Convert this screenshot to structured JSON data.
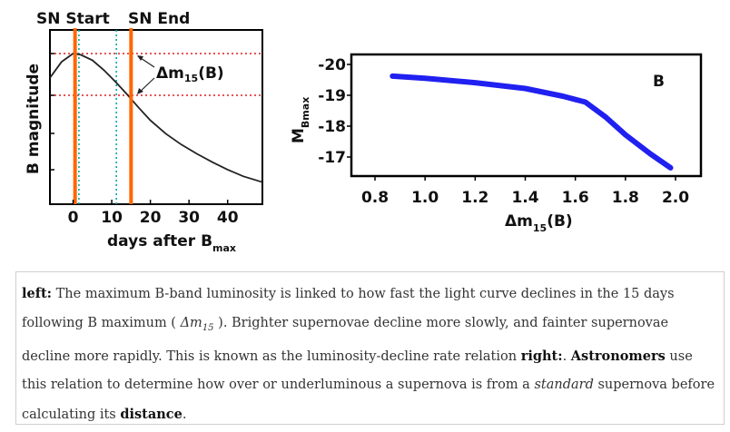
{
  "chart_data": [
    {
      "type": "line",
      "x_ticks": [
        "0",
        "10",
        "20",
        "30",
        "40"
      ],
      "xlabel": "days after B",
      "xlabel_sub": "max",
      "ylabel": "B magnitude",
      "xlim": [
        -6,
        49
      ],
      "y_inverted": true,
      "grid": false,
      "series": [
        {
          "x": [
            -6,
            -3,
            0,
            2,
            5,
            8,
            11,
            14,
            17,
            20,
            24,
            28,
            32,
            36,
            40,
            44,
            49
          ],
          "y": [
            0.58,
            0.2,
            0.0,
            0.03,
            0.16,
            0.4,
            0.68,
            0.98,
            1.3,
            1.6,
            1.92,
            2.18,
            2.4,
            2.6,
            2.78,
            2.94,
            3.08
          ]
        }
      ],
      "markers": [
        {
          "label": "SN Start",
          "x": 0.5,
          "color": "#ff6600"
        },
        {
          "label": "SN End",
          "x": 15,
          "color": "#ff6600"
        }
      ],
      "dotted_vlines": [
        {
          "x": 1.5,
          "color": "#00a8a8"
        },
        {
          "x": 11.2,
          "color": "#00a8a8"
        }
      ],
      "dotted_hlines": [
        {
          "y": 0.0,
          "color": "#e41a1c"
        },
        {
          "y": 1.0,
          "color": "#e41a1c"
        }
      ],
      "annotations": [
        {
          "text": "Δm",
          "sub": "15",
          "suffix": "(B)"
        }
      ]
    },
    {
      "type": "line",
      "x_ticks": [
        "0.8",
        "1.0",
        "1.2",
        "1.4",
        "1.6",
        "1.8",
        "2.0"
      ],
      "y_ticks": [
        "-20",
        "-19",
        "-18",
        "-17"
      ],
      "xlim": [
        0.8,
        2.1
      ],
      "ylim": [
        -20.2,
        -16.4
      ],
      "xlabel": "Δm",
      "xlabel_sub": "15",
      "xlabel_suffix": "(B)",
      "ylabel": "M",
      "ylabel_sub": "Bmax",
      "grid": false,
      "legend": "top-right",
      "series": [
        {
          "name": "B",
          "color": "#2020f0",
          "x": [
            0.87,
            1.0,
            1.2,
            1.4,
            1.55,
            1.64,
            1.72,
            1.8,
            1.9,
            1.98
          ],
          "y": [
            -19.62,
            -19.55,
            -19.41,
            -19.22,
            -18.97,
            -18.78,
            -18.3,
            -17.72,
            -17.1,
            -16.65
          ]
        }
      ]
    }
  ],
  "caption": {
    "left_label": "left:",
    "part1": " The maximum B-band luminosity is linked to how fast the light curve declines in the 15 days following B maximum ( ",
    "math": "Δm",
    "math_sub": "15",
    "part2": " ). Brighter supernovae decline more slowly, and fainter supernovae decline more rapidly. This is known as the luminosity-decline rate relation ",
    "right_label": "right:",
    "part3": ". ",
    "bold1": "Astronomers",
    "part4": " use this relation to determine how over or underluminous a supernova is from a ",
    "italic1": "standard",
    "part5": " supernova before calculating its ",
    "bold2": "distance",
    "part6": "."
  }
}
